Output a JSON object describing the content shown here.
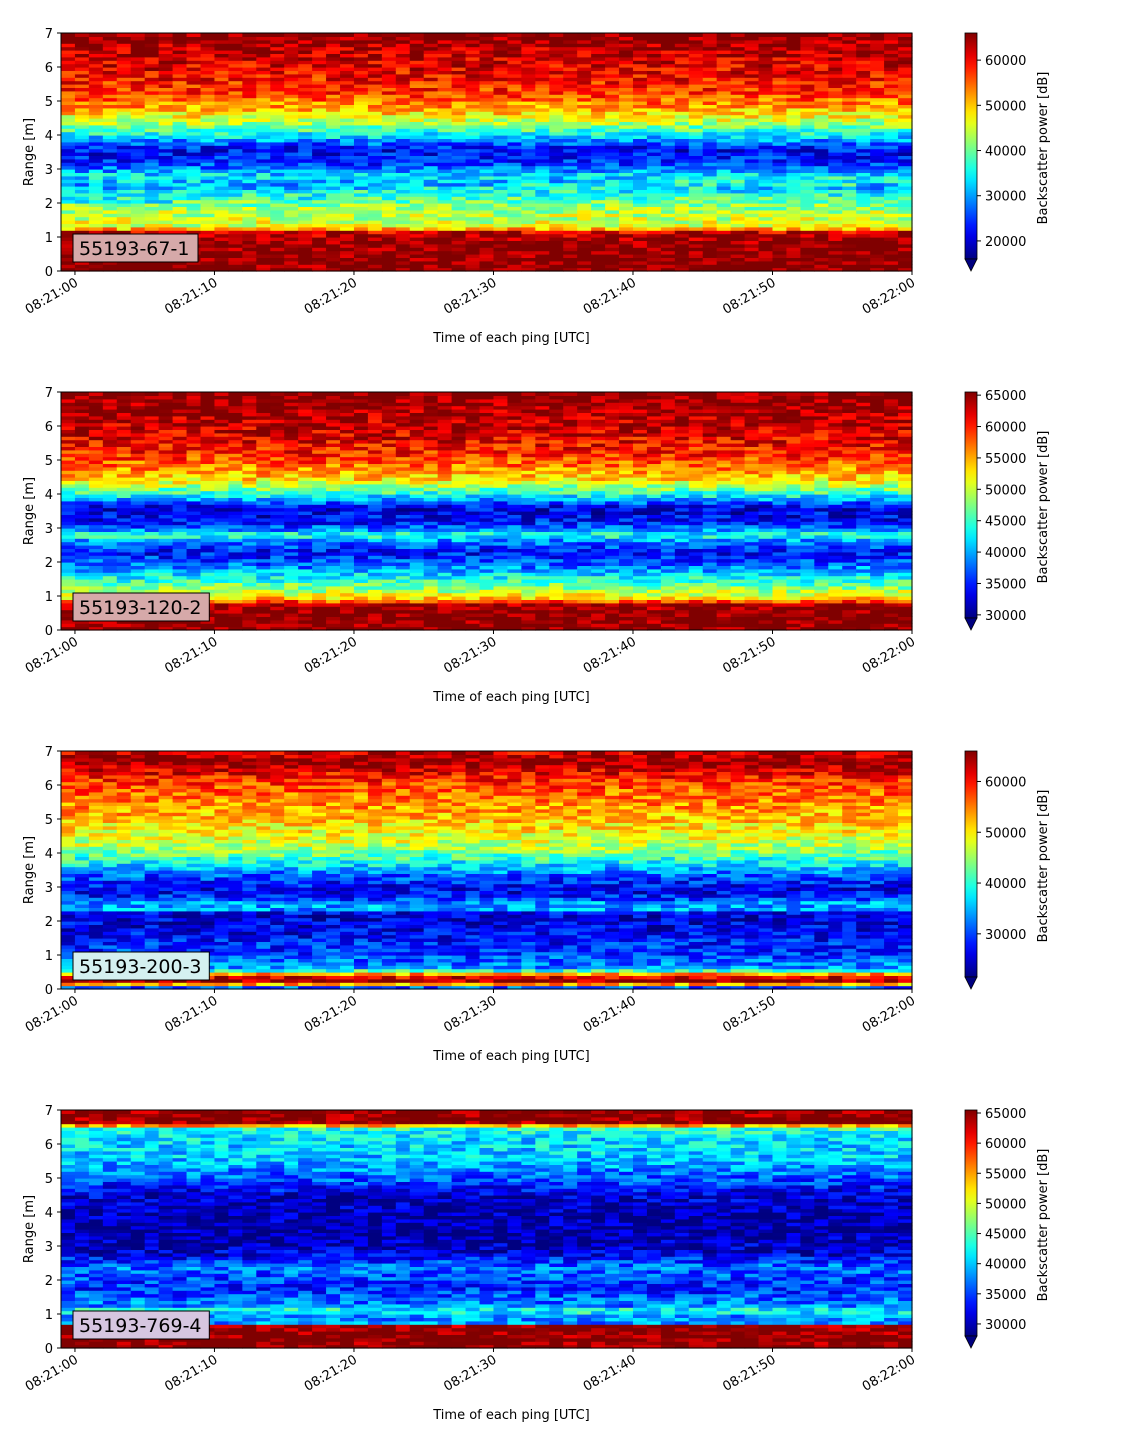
{
  "figure": {
    "xlabel": "Time of each ping [UTC]",
    "ylabel": "Range [m]",
    "colorbar_label": "Backscatter power [dB]",
    "colormap": "jet",
    "label_box_color": "#d8a8a8"
  },
  "chart_data": [
    {
      "type": "heatmap",
      "label": "55193-67-1",
      "label_box_color": "#d6a9a9",
      "x_ticks": [
        "08:21:00",
        "08:21:10",
        "08:21:20",
        "08:21:30",
        "08:21:40",
        "08:21:50",
        "08:22:00"
      ],
      "xlim": [
        "08:20:59",
        "08:22:00"
      ],
      "ylim": [
        0,
        7
      ],
      "y_ticks": [
        0,
        1,
        2,
        3,
        4,
        5,
        6,
        7
      ],
      "colorbar_range": [
        16000,
        66000
      ],
      "colorbar_ticks": [
        20000,
        30000,
        40000,
        50000,
        60000
      ],
      "profile": [
        {
          "range": 0.0,
          "value": 66000
        },
        {
          "range": 0.3,
          "value": 66000
        },
        {
          "range": 0.9,
          "value": 65500
        },
        {
          "range": 1.15,
          "value": 62000
        },
        {
          "range": 1.3,
          "value": 46000
        },
        {
          "range": 1.8,
          "value": 43000
        },
        {
          "range": 2.2,
          "value": 38000
        },
        {
          "range": 2.5,
          "value": 30000
        },
        {
          "range": 2.8,
          "value": 34000
        },
        {
          "range": 3.2,
          "value": 24000
        },
        {
          "range": 3.6,
          "value": 22000
        },
        {
          "range": 4.0,
          "value": 34000
        },
        {
          "range": 4.3,
          "value": 42000
        },
        {
          "range": 4.7,
          "value": 50000
        },
        {
          "range": 5.2,
          "value": 57000
        },
        {
          "range": 6.0,
          "value": 61000
        },
        {
          "range": 6.6,
          "value": 64000
        },
        {
          "range": 7.0,
          "value": 66000
        }
      ],
      "feature_line": {
        "range_start": 2.1,
        "range_end": 2.7,
        "value": 36000
      }
    },
    {
      "type": "heatmap",
      "label": "55193-120-2",
      "label_box_color": "#d6a9a9",
      "x_ticks": [
        "08:21:00",
        "08:21:10",
        "08:21:20",
        "08:21:30",
        "08:21:40",
        "08:21:50",
        "08:22:00"
      ],
      "xlim": [
        "08:20:59",
        "08:22:00"
      ],
      "ylim": [
        0,
        7
      ],
      "y_ticks": [
        0,
        1,
        2,
        3,
        4,
        5,
        6,
        7
      ],
      "colorbar_range": [
        29500,
        65500
      ],
      "colorbar_ticks": [
        30000,
        35000,
        40000,
        45000,
        50000,
        55000,
        60000,
        65000
      ],
      "profile": [
        {
          "range": 0.0,
          "value": 65500
        },
        {
          "range": 0.2,
          "value": 65500
        },
        {
          "range": 0.75,
          "value": 65000
        },
        {
          "range": 0.9,
          "value": 55000
        },
        {
          "range": 1.1,
          "value": 50000
        },
        {
          "range": 1.5,
          "value": 44000
        },
        {
          "range": 1.9,
          "value": 38000
        },
        {
          "range": 2.3,
          "value": 34000
        },
        {
          "range": 2.8,
          "value": 42000
        },
        {
          "range": 3.2,
          "value": 34000
        },
        {
          "range": 3.6,
          "value": 33000
        },
        {
          "range": 4.0,
          "value": 44000
        },
        {
          "range": 4.5,
          "value": 54000
        },
        {
          "range": 5.2,
          "value": 60000
        },
        {
          "range": 6.0,
          "value": 63000
        },
        {
          "range": 6.7,
          "value": 65000
        },
        {
          "range": 7.0,
          "value": 65500
        }
      ],
      "feature_line": {
        "range_start": 2.8,
        "range_end": 2.8,
        "value": 43000
      }
    },
    {
      "type": "heatmap",
      "label": "55193-200-3",
      "label_box_color": "#d4f0f0",
      "x_ticks": [
        "08:21:00",
        "08:21:10",
        "08:21:20",
        "08:21:30",
        "08:21:40",
        "08:21:50",
        "08:22:00"
      ],
      "xlim": [
        "08:20:59",
        "08:22:00"
      ],
      "ylim": [
        0,
        7
      ],
      "y_ticks": [
        0,
        1,
        2,
        3,
        4,
        5,
        6,
        7
      ],
      "colorbar_range": [
        21500,
        66000
      ],
      "colorbar_ticks": [
        30000,
        40000,
        50000,
        60000
      ],
      "profile": [
        {
          "range": 0.0,
          "value": 22000
        },
        {
          "range": 0.1,
          "value": 40000
        },
        {
          "range": 0.2,
          "value": 66000
        },
        {
          "range": 0.4,
          "value": 60000
        },
        {
          "range": 0.6,
          "value": 34000
        },
        {
          "range": 1.0,
          "value": 30000
        },
        {
          "range": 1.6,
          "value": 27000
        },
        {
          "range": 2.2,
          "value": 25000
        },
        {
          "range": 2.5,
          "value": 32000
        },
        {
          "range": 2.9,
          "value": 26000
        },
        {
          "range": 3.3,
          "value": 30000
        },
        {
          "range": 3.7,
          "value": 38000
        },
        {
          "range": 4.2,
          "value": 46000
        },
        {
          "range": 5.0,
          "value": 52000
        },
        {
          "range": 5.8,
          "value": 56000
        },
        {
          "range": 6.3,
          "value": 60000
        },
        {
          "range": 6.7,
          "value": 66000
        },
        {
          "range": 7.0,
          "value": 62000
        }
      ],
      "feature_line": {
        "range_start": 2.45,
        "range_end": 2.45,
        "value": 34000
      }
    },
    {
      "type": "heatmap",
      "label": "55193-769-4",
      "label_box_color": "#d6c6e0",
      "x_ticks": [
        "08:21:00",
        "08:21:10",
        "08:21:20",
        "08:21:30",
        "08:21:40",
        "08:21:50",
        "08:22:00"
      ],
      "xlim": [
        "08:20:59",
        "08:22:00"
      ],
      "ylim": [
        0,
        7
      ],
      "y_ticks": [
        0,
        1,
        2,
        3,
        4,
        5,
        6,
        7
      ],
      "colorbar_range": [
        28000,
        65500
      ],
      "colorbar_ticks": [
        30000,
        35000,
        40000,
        45000,
        50000,
        55000,
        60000,
        65000
      ],
      "profile": [
        {
          "range": 0.0,
          "value": 65500
        },
        {
          "range": 0.3,
          "value": 65500
        },
        {
          "range": 0.65,
          "value": 65000
        },
        {
          "range": 0.75,
          "value": 38000
        },
        {
          "range": 1.2,
          "value": 38000
        },
        {
          "range": 1.8,
          "value": 34000
        },
        {
          "range": 2.4,
          "value": 37000
        },
        {
          "range": 2.8,
          "value": 31000
        },
        {
          "range": 3.4,
          "value": 29000
        },
        {
          "range": 4.0,
          "value": 29500
        },
        {
          "range": 4.5,
          "value": 31000
        },
        {
          "range": 5.0,
          "value": 36000
        },
        {
          "range": 5.6,
          "value": 40000
        },
        {
          "range": 6.2,
          "value": 41000
        },
        {
          "range": 6.5,
          "value": 44000
        },
        {
          "range": 6.6,
          "value": 65000
        },
        {
          "range": 7.0,
          "value": 65500
        }
      ],
      "feature_line": {
        "range_start": 1.1,
        "range_end": 1.1,
        "value": 42000
      }
    }
  ]
}
